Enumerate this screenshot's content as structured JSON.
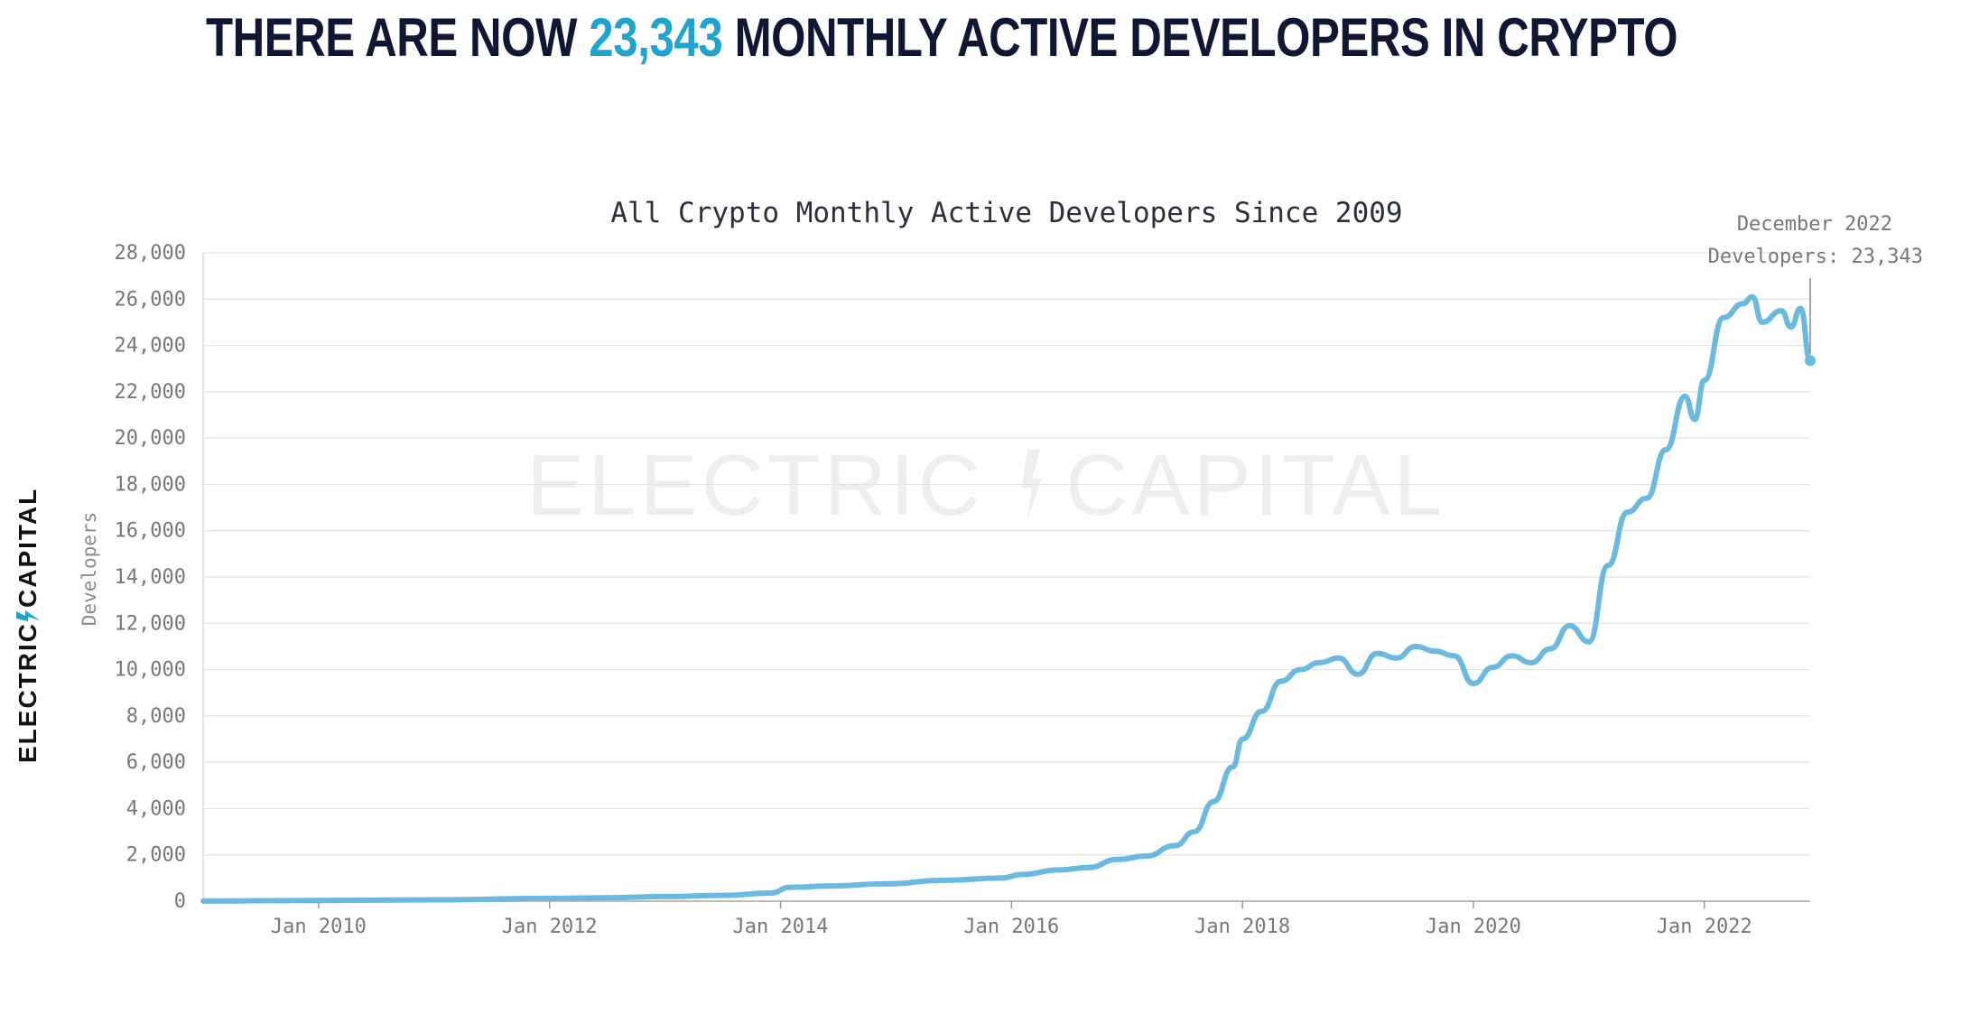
{
  "headline": {
    "prefix": "THERE ARE NOW ",
    "highlight": "23,343",
    "suffix": " MONTHLY ACTIVE DEVELOPERS IN CRYPTO"
  },
  "brand": {
    "left": "ELECTRIC",
    "right": "CAPITAL",
    "watermark_left": "ELECTRIC",
    "watermark_right": "CAPITAL"
  },
  "colors": {
    "line": "#6ab9e0",
    "accent": "#1fa3cf",
    "headline": "#0f1734"
  },
  "chart_data": {
    "type": "line",
    "title": "All Crypto Monthly Active Developers Since 2009",
    "ylabel": "Developers",
    "xlabel": "",
    "ylim": [
      0,
      28000
    ],
    "xlim": [
      "2009-01",
      "2022-12"
    ],
    "yticks": [
      "0",
      "2,000",
      "4,000",
      "6,000",
      "8,000",
      "10,000",
      "12,000",
      "14,000",
      "16,000",
      "18,000",
      "20,000",
      "22,000",
      "24,000",
      "26,000",
      "28,000"
    ],
    "ytick_values": [
      0,
      2000,
      4000,
      6000,
      8000,
      10000,
      12000,
      14000,
      16000,
      18000,
      20000,
      22000,
      24000,
      26000,
      28000
    ],
    "xticks": [
      "Jan 2010",
      "Jan 2012",
      "Jan 2014",
      "Jan 2016",
      "Jan 2018",
      "Jan 2020",
      "Jan 2022"
    ],
    "xtick_dates": [
      "2010-01",
      "2012-01",
      "2014-01",
      "2016-01",
      "2018-01",
      "2020-01",
      "2022-01"
    ],
    "grid": true,
    "annotation": {
      "line1": "December 2022",
      "line2": "Developers: 23,343",
      "date": "2022-12",
      "value": 23343
    },
    "series": [
      {
        "values": [
          [
            "2009-01",
            5
          ],
          [
            "2010-01",
            30
          ],
          [
            "2011-01",
            60
          ],
          [
            "2012-01",
            120
          ],
          [
            "2012-07",
            150
          ],
          [
            "2013-01",
            200
          ],
          [
            "2013-07",
            250
          ],
          [
            "2013-12",
            350
          ],
          [
            "2014-02",
            600
          ],
          [
            "2014-06",
            650
          ],
          [
            "2014-12",
            750
          ],
          [
            "2015-06",
            900
          ],
          [
            "2015-12",
            1000
          ],
          [
            "2016-02",
            1150
          ],
          [
            "2016-06",
            1350
          ],
          [
            "2016-09",
            1450
          ],
          [
            "2016-12",
            1800
          ],
          [
            "2017-03",
            1950
          ],
          [
            "2017-06",
            2400
          ],
          [
            "2017-08",
            3000
          ],
          [
            "2017-10",
            4300
          ],
          [
            "2017-12",
            5800
          ],
          [
            "2018-01",
            7000
          ],
          [
            "2018-03",
            8200
          ],
          [
            "2018-05",
            9500
          ],
          [
            "2018-07",
            10000
          ],
          [
            "2018-09",
            10300
          ],
          [
            "2018-11",
            10500
          ],
          [
            "2019-01",
            9800
          ],
          [
            "2019-03",
            10700
          ],
          [
            "2019-05",
            10500
          ],
          [
            "2019-07",
            11000
          ],
          [
            "2019-09",
            10800
          ],
          [
            "2019-11",
            10600
          ],
          [
            "2020-01",
            9400
          ],
          [
            "2020-03",
            10100
          ],
          [
            "2020-05",
            10600
          ],
          [
            "2020-07",
            10300
          ],
          [
            "2020-09",
            10900
          ],
          [
            "2020-11",
            11900
          ],
          [
            "2021-01",
            11200
          ],
          [
            "2021-03",
            14500
          ],
          [
            "2021-05",
            16800
          ],
          [
            "2021-07",
            17400
          ],
          [
            "2021-09",
            19500
          ],
          [
            "2021-11",
            21800
          ],
          [
            "2021-12",
            20800
          ],
          [
            "2022-01",
            22500
          ],
          [
            "2022-03",
            25200
          ],
          [
            "2022-05",
            25800
          ],
          [
            "2022-06",
            26100
          ],
          [
            "2022-07",
            25000
          ],
          [
            "2022-09",
            25500
          ],
          [
            "2022-10",
            24800
          ],
          [
            "2022-11",
            25600
          ],
          [
            "2022-12",
            23343
          ]
        ]
      }
    ]
  }
}
